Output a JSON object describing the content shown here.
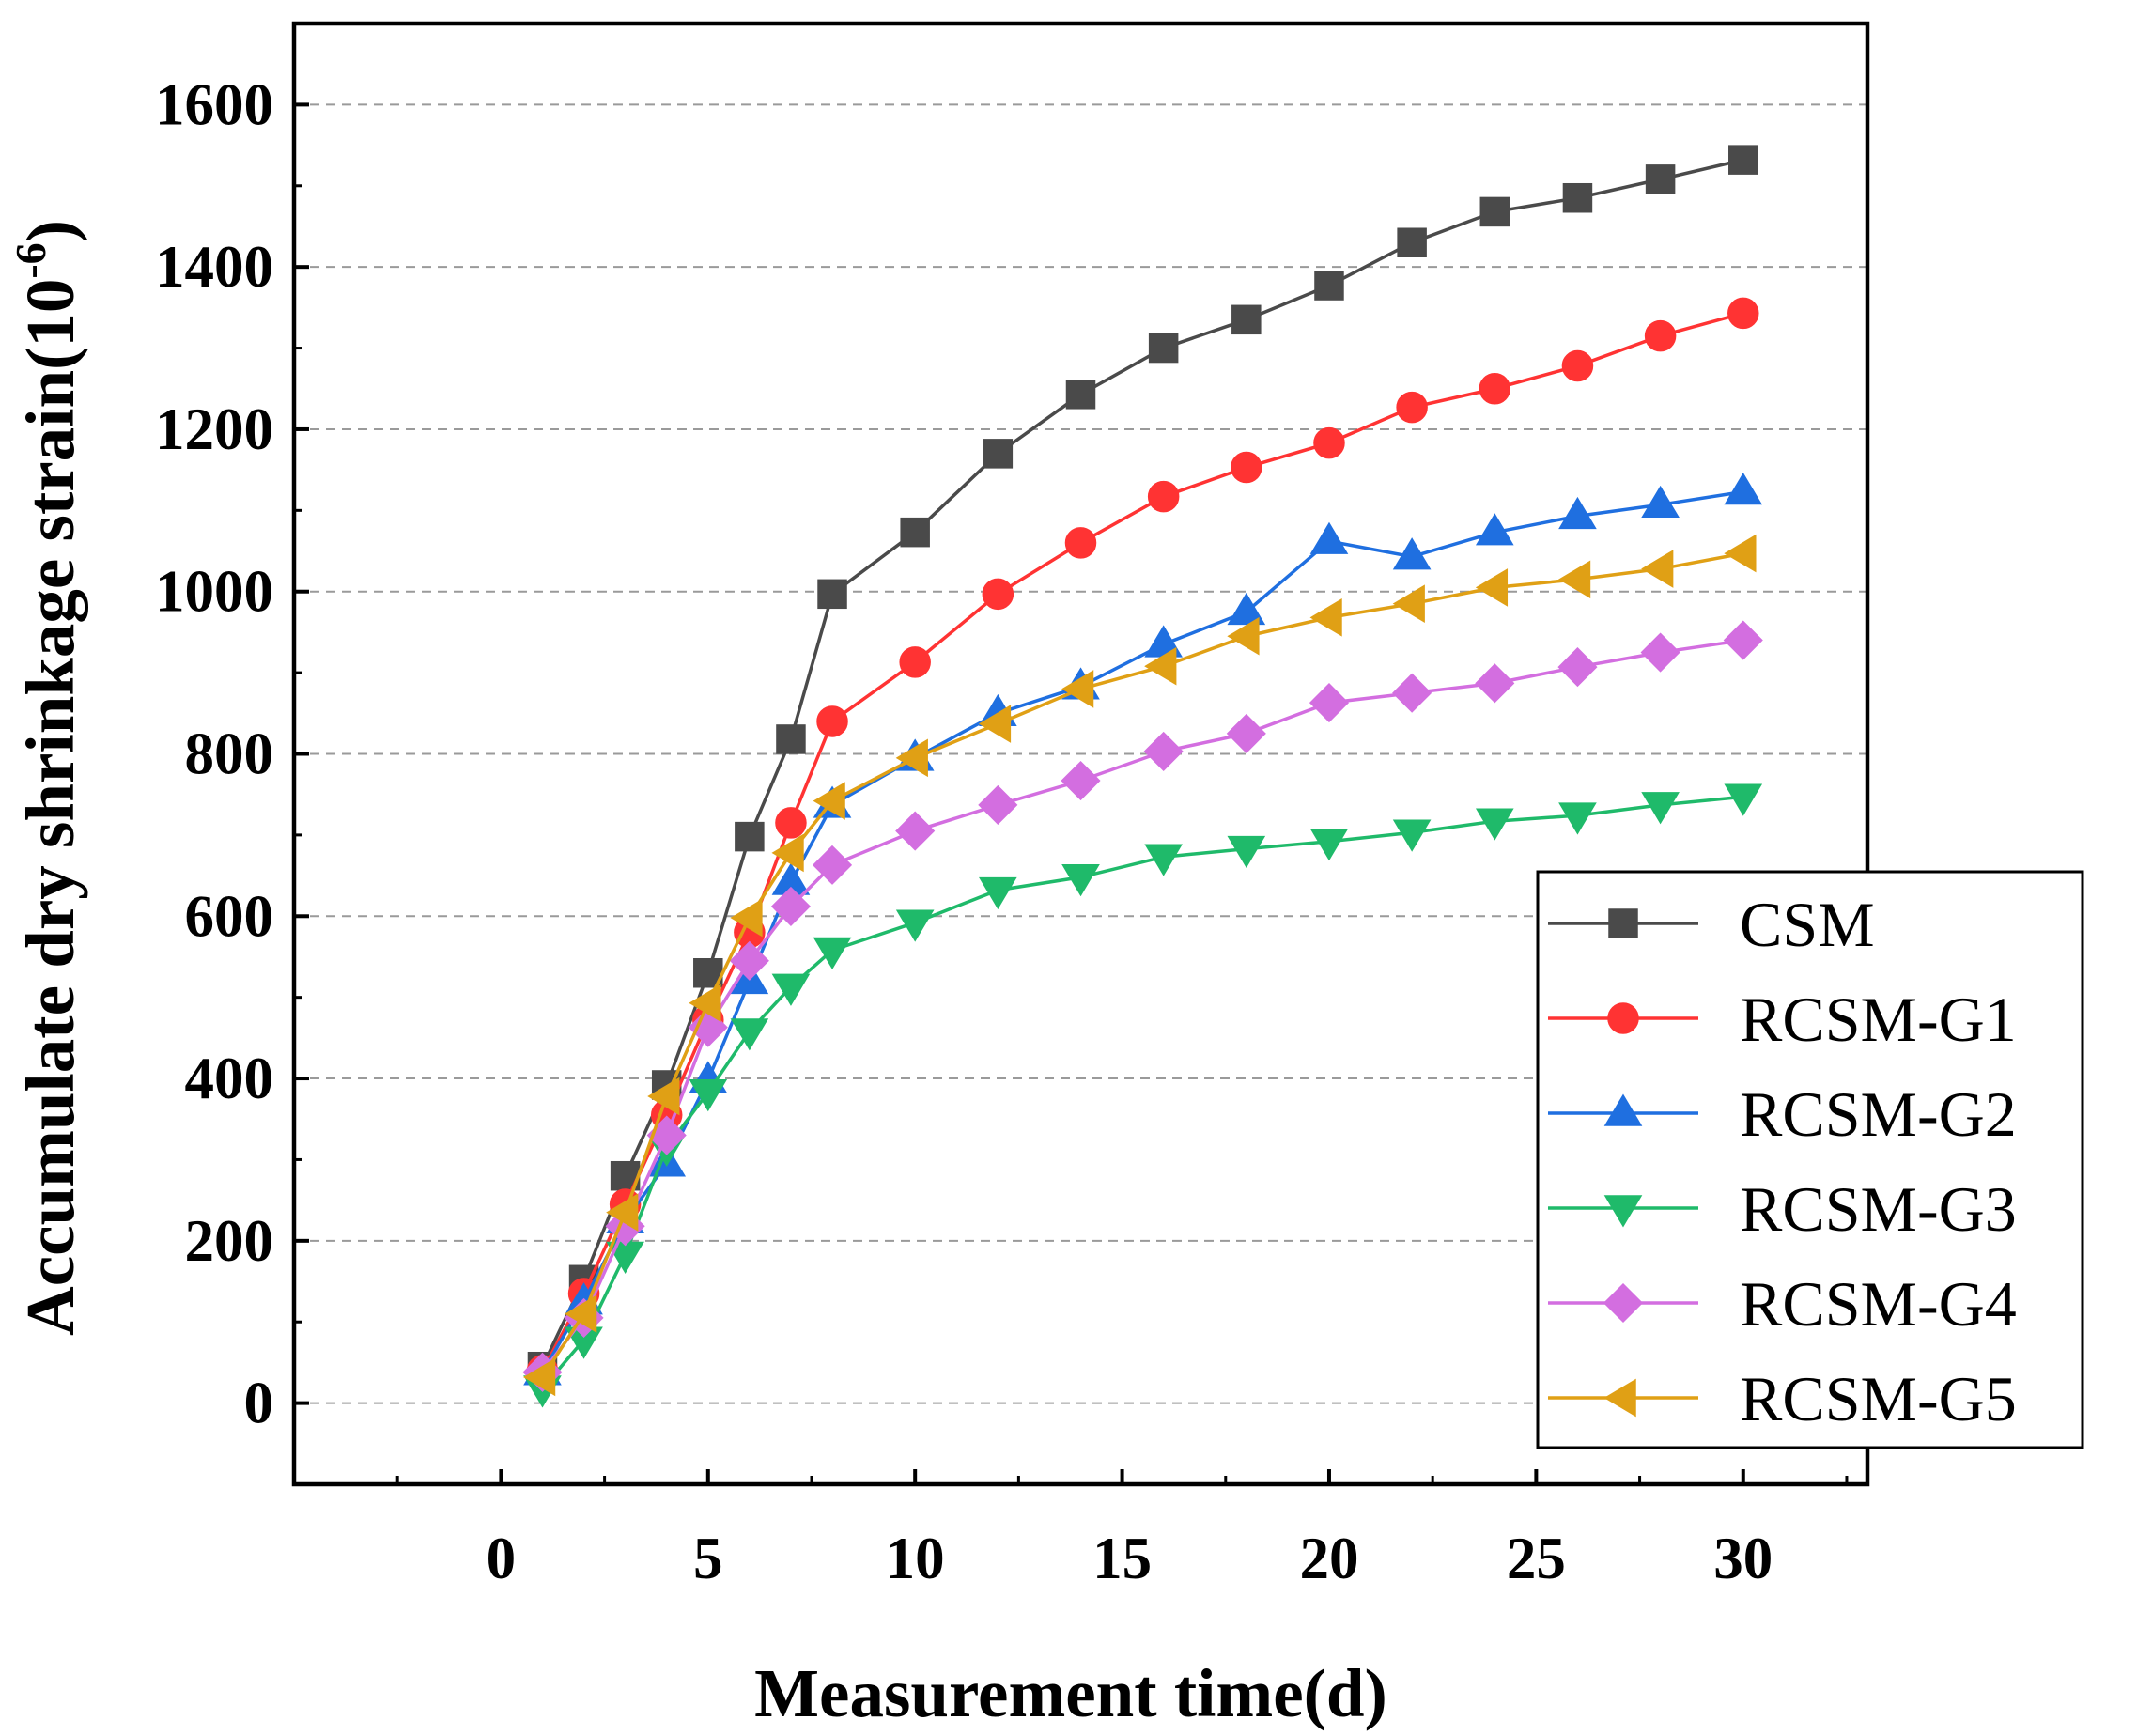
{
  "chart_data": {
    "type": "line",
    "title": "",
    "xlabel": "Measurement time(d)",
    "ylabel": {
      "main": "Accumulate dry shrinkage strain(10",
      "sup": "-6",
      "close": ")"
    },
    "xlim": [
      -5,
      33
    ],
    "ylim": [
      -100,
      1700
    ],
    "xticks": [
      0,
      5,
      10,
      15,
      20,
      25,
      30
    ],
    "yticks": [
      0,
      200,
      400,
      600,
      800,
      1000,
      1200,
      1400,
      1600
    ],
    "grid": "horizontal dashed",
    "legend_position": "bottom-right",
    "x": [
      1,
      2,
      3,
      4,
      5,
      6,
      7,
      8,
      10,
      12,
      14,
      16,
      18,
      20,
      22,
      24,
      26,
      28,
      30
    ],
    "series": [
      {
        "name": "CSM",
        "color": "#4a4a4a",
        "marker": "square",
        "values": [
          45,
          152,
          280,
          392,
          530,
          698,
          818,
          997,
          1073,
          1170,
          1243,
          1300,
          1335,
          1377,
          1430,
          1468,
          1485,
          1508,
          1532
        ]
      },
      {
        "name": "RCSM-G1",
        "color": "#ff3333",
        "marker": "circle",
        "values": [
          40,
          135,
          245,
          355,
          472,
          580,
          715,
          840,
          913,
          997,
          1060,
          1117,
          1153,
          1183,
          1227,
          1250,
          1278,
          1315,
          1343
        ]
      },
      {
        "name": "RCSM-G2",
        "color": "#1f6fe0",
        "marker": "triangle-up",
        "values": [
          38,
          125,
          225,
          295,
          398,
          520,
          642,
          737,
          795,
          850,
          883,
          935,
          975,
          1062,
          1043,
          1073,
          1093,
          1107,
          1123
        ]
      },
      {
        "name": "RCSM-G3",
        "color": "#1fba6a",
        "marker": "triangle-down",
        "values": [
          18,
          78,
          183,
          315,
          383,
          458,
          513,
          558,
          592,
          632,
          648,
          673,
          683,
          692,
          703,
          717,
          724,
          737,
          747
        ]
      },
      {
        "name": "RCSM-G4",
        "color": "#d36ee0",
        "marker": "diamond",
        "values": [
          38,
          105,
          218,
          330,
          463,
          545,
          612,
          663,
          705,
          737,
          767,
          803,
          825,
          863,
          875,
          887,
          907,
          925,
          940
        ]
      },
      {
        "name": "RCSM-G5",
        "color": "#e0a015",
        "marker": "triangle-left",
        "values": [
          32,
          110,
          235,
          378,
          493,
          598,
          678,
          742,
          795,
          837,
          880,
          908,
          945,
          968,
          985,
          1005,
          1015,
          1028,
          1047
        ]
      }
    ]
  }
}
